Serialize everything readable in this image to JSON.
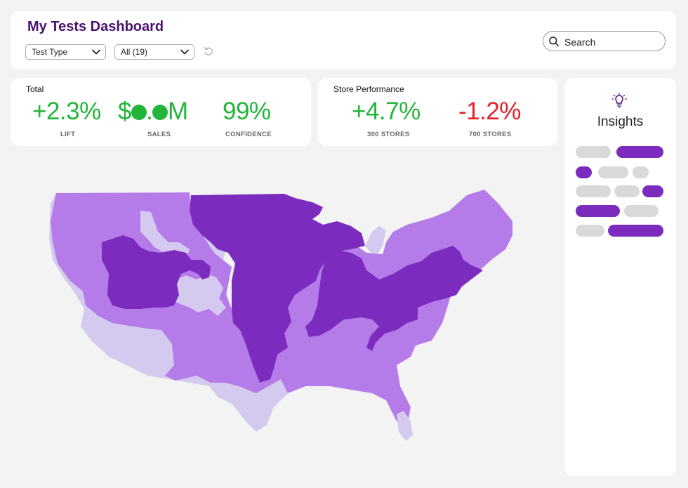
{
  "header": {
    "title": "My Tests Dashboard",
    "filters": [
      {
        "label": "Test Type",
        "icon": "chevron-down-icon"
      },
      {
        "label": "All (19)",
        "icon": "chevron-down-icon"
      }
    ],
    "reset_icon": "reset-icon",
    "search": {
      "placeholder": "Search",
      "icon": "search-icon"
    }
  },
  "total": {
    "title": "Total",
    "kpis": [
      {
        "value": "+2.3%",
        "label": "LIFT",
        "color": "#22b53a"
      },
      {
        "value_prefix": "$",
        "value_suffix": "M",
        "label": "SALES",
        "color": "#22b53a"
      },
      {
        "value": "99%",
        "label": "CONFIDENCE",
        "color": "#22b53a"
      }
    ]
  },
  "store_performance": {
    "title": "Store Performance",
    "kpis": [
      {
        "value": "+4.7%",
        "label": "300 STORES",
        "color": "#22b53a"
      },
      {
        "value": "-1.2%",
        "label": "700 STORES",
        "color": "#e8202a"
      }
    ]
  },
  "insights": {
    "title": "Insights",
    "icon": "lightbulb-icon",
    "colors": {
      "accent": "#7b2cbf",
      "placeholder": "#d9d9d9"
    }
  },
  "map": {
    "colors": {
      "dark": "#7b2cbf",
      "medium": "#b57be8",
      "light": "#d4caf0"
    }
  }
}
